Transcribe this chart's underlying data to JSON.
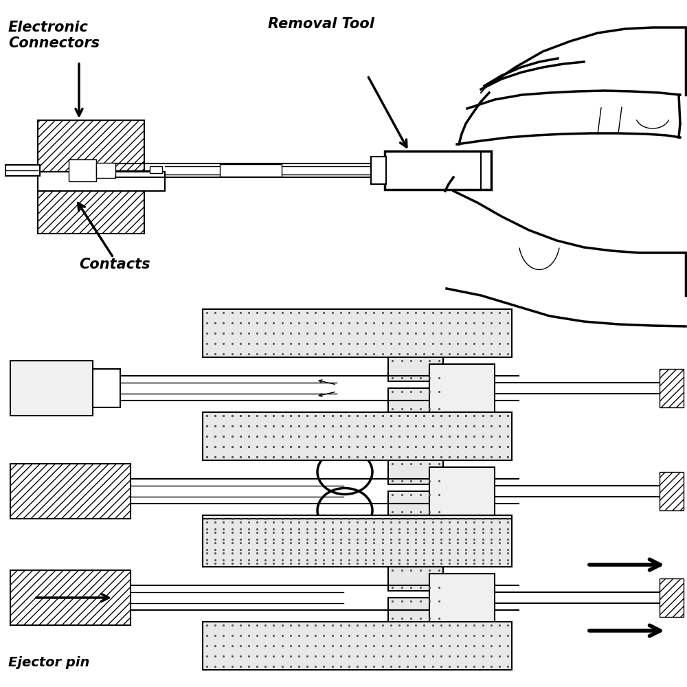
{
  "bg_color": "#ffffff",
  "lc": "#000000",
  "labels": {
    "electronic_connectors": "Electronic\nConnectors",
    "removal_tool": "Removal Tool",
    "contacts": "Contacts",
    "ejector_pin": "Ejector pin"
  },
  "figsize": [
    10,
    10
  ],
  "dpi": 100
}
